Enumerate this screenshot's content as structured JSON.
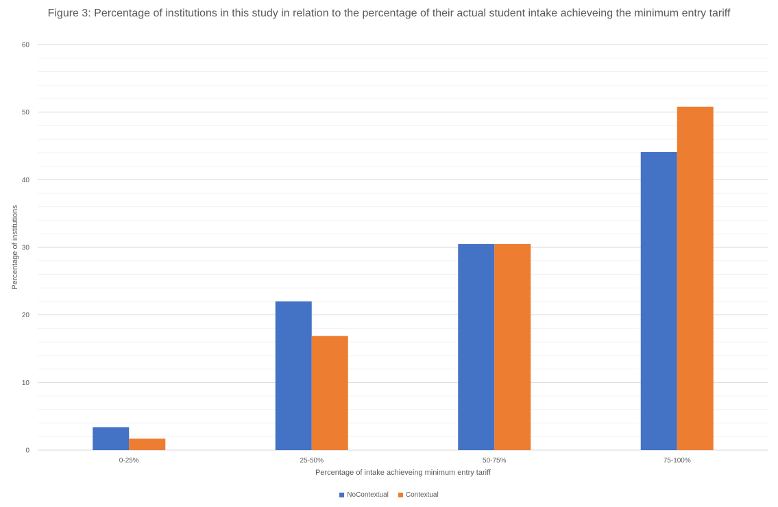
{
  "chart_data": {
    "type": "bar",
    "title": "Figure 3: Percentage of institutions in this study in relation to the percentage of their actual student intake achieveing the minimum entry tariff",
    "xlabel": "Percentage of intake achieveing minimum entry tariff",
    "ylabel": "Percentage of institutions",
    "categories": [
      "0-25%",
      "25-50%",
      "50-75%",
      "75-100%"
    ],
    "series": [
      {
        "name": "NoContextual",
        "values": [
          3.4,
          22.0,
          30.5,
          44.1
        ],
        "color": "#4472C4"
      },
      {
        "name": "Contextual",
        "values": [
          1.7,
          16.9,
          30.5,
          50.8
        ],
        "color": "#ED7D31"
      }
    ],
    "ylim": [
      0,
      60
    ],
    "yticks": [
      0,
      10,
      20,
      30,
      40,
      50,
      60
    ],
    "grid": true,
    "legend": "bottom"
  }
}
